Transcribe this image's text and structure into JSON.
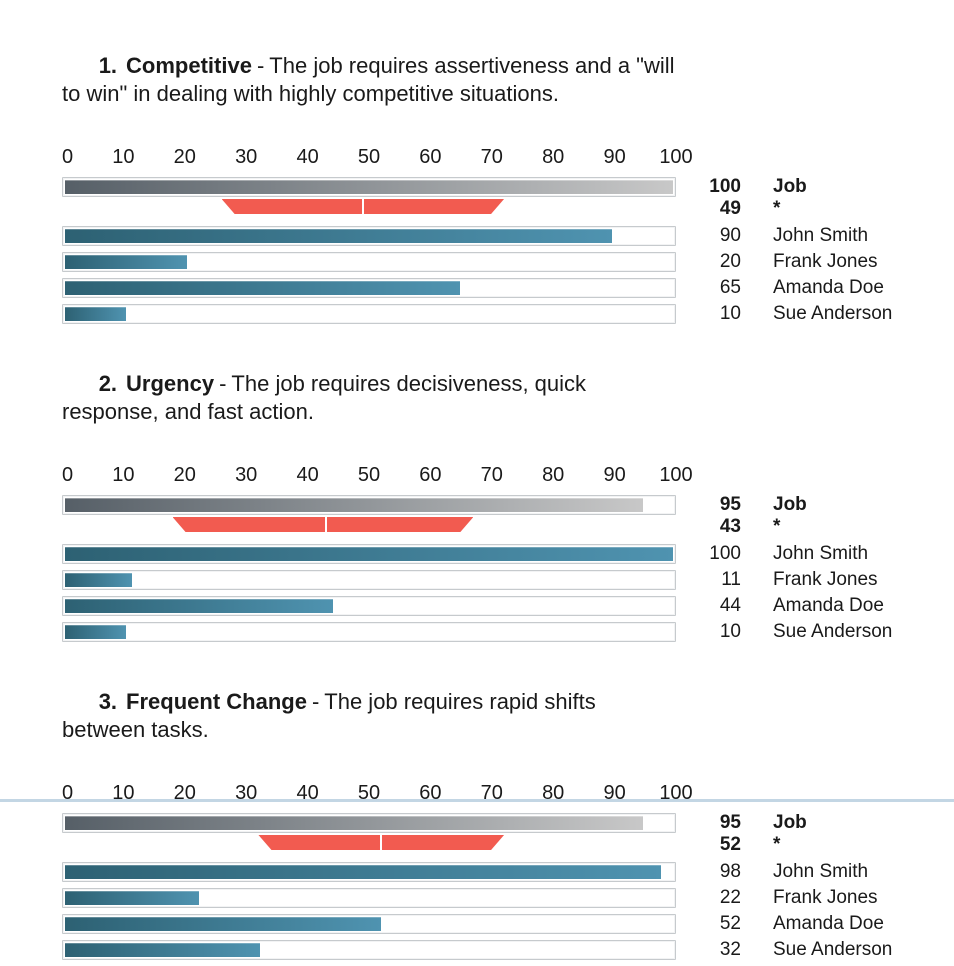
{
  "colors": {
    "job_bar_gradient_start": "#565f67",
    "job_bar_gradient_end": "#c8c8c8",
    "candidate_bar_gradient_start": "#2d6173",
    "candidate_bar_gradient_end": "#4f93b0",
    "range_band": "#f25b50",
    "track_border": "#c6cacd",
    "bottom_rule": "#c3d6e4",
    "text": "#1a1a1a"
  },
  "chart_data": [
    {
      "type": "bar",
      "number": "1.",
      "title": "Competitive",
      "separator": "-",
      "description": "The job requires assertiveness and a \"will to win\" in dealing with highly competitive situations.",
      "xlim": [
        0,
        100
      ],
      "grid": false,
      "legend_position": "right",
      "ticks": [
        0,
        10,
        20,
        30,
        40,
        50,
        60,
        70,
        80,
        90,
        100
      ],
      "job": {
        "label": "Job",
        "value": 100
      },
      "benchmark": {
        "label": "*",
        "value": 49,
        "range_low": 26,
        "range_high": 72
      },
      "candidates": [
        {
          "name": "John Smith",
          "value": 90
        },
        {
          "name": "Frank Jones",
          "value": 20
        },
        {
          "name": "Amanda Doe",
          "value": 65
        },
        {
          "name": "Sue Anderson",
          "value": 10
        }
      ]
    },
    {
      "type": "bar",
      "number": "2.",
      "title": "Urgency",
      "separator": "-",
      "description": "The job requires decisiveness, quick response, and fast action.",
      "xlim": [
        0,
        100
      ],
      "grid": false,
      "legend_position": "right",
      "ticks": [
        0,
        10,
        20,
        30,
        40,
        50,
        60,
        70,
        80,
        90,
        100
      ],
      "job": {
        "label": "Job",
        "value": 95
      },
      "benchmark": {
        "label": "*",
        "value": 43,
        "range_low": 18,
        "range_high": 67
      },
      "candidates": [
        {
          "name": "John Smith",
          "value": 100
        },
        {
          "name": "Frank Jones",
          "value": 11
        },
        {
          "name": "Amanda Doe",
          "value": 44
        },
        {
          "name": "Sue Anderson",
          "value": 10
        }
      ]
    },
    {
      "type": "bar",
      "number": "3.",
      "title": "Frequent Change",
      "separator": "-",
      "description": "The job requires rapid shifts between tasks.",
      "xlim": [
        0,
        100
      ],
      "grid": false,
      "legend_position": "right",
      "ticks": [
        0,
        10,
        20,
        30,
        40,
        50,
        60,
        70,
        80,
        90,
        100
      ],
      "job": {
        "label": "Job",
        "value": 95
      },
      "benchmark": {
        "label": "*",
        "value": 52,
        "range_low": 32,
        "range_high": 72
      },
      "candidates": [
        {
          "name": "John Smith",
          "value": 98
        },
        {
          "name": "Frank Jones",
          "value": 22
        },
        {
          "name": "Amanda Doe",
          "value": 52
        },
        {
          "name": "Sue Anderson",
          "value": 32
        }
      ]
    }
  ]
}
